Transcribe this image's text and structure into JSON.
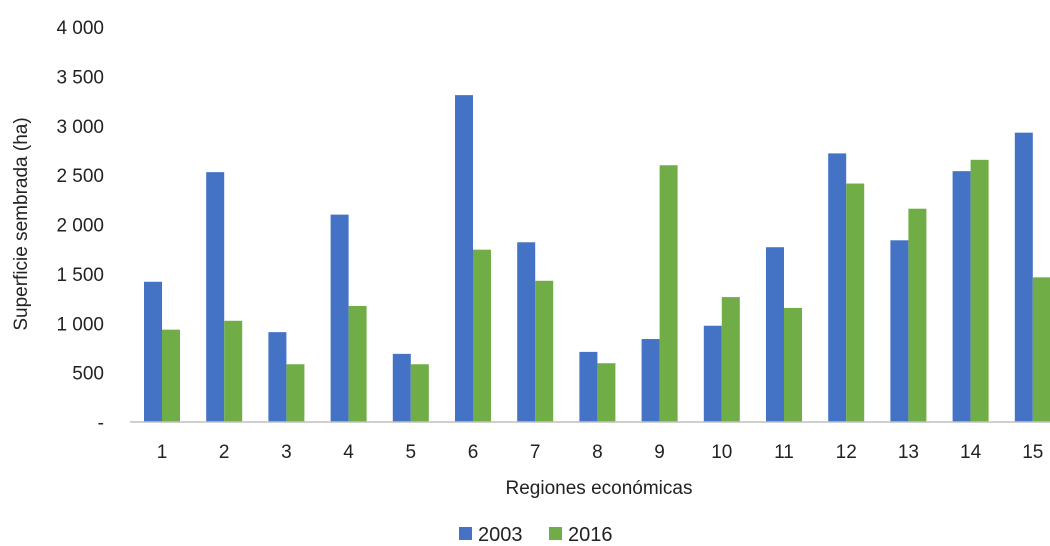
{
  "chart_data": {
    "type": "bar",
    "title": "",
    "xlabel": "Regiones económicas",
    "ylabel": "Superficie sembrada (ha)",
    "categories": [
      "1",
      "2",
      "3",
      "4",
      "5",
      "6",
      "7",
      "8",
      "9",
      "10",
      "11",
      "12",
      "13",
      "14",
      "15"
    ],
    "series": [
      {
        "name": "2003",
        "color": "#4472C4",
        "values": [
          1420,
          2530,
          910,
          2100,
          690,
          3310,
          1820,
          710,
          840,
          975,
          1770,
          2720,
          1840,
          2540,
          2930
        ]
      },
      {
        "name": "2016",
        "color": "#70AD47",
        "values": [
          935,
          1025,
          585,
          1175,
          585,
          1745,
          1430,
          595,
          2600,
          1265,
          1155,
          2415,
          2160,
          2655,
          1465
        ]
      }
    ],
    "ylim": [
      0,
      4000
    ],
    "y_ticks": [
      0,
      500,
      1000,
      1500,
      2000,
      2500,
      3000,
      3500,
      4000
    ],
    "y_tick_labels": [
      "-",
      "500",
      "1 000",
      "1 500",
      "2 000",
      "2 500",
      "3 000",
      "3 500",
      "4 000"
    ],
    "grid": false,
    "legend_position": "bottom"
  }
}
